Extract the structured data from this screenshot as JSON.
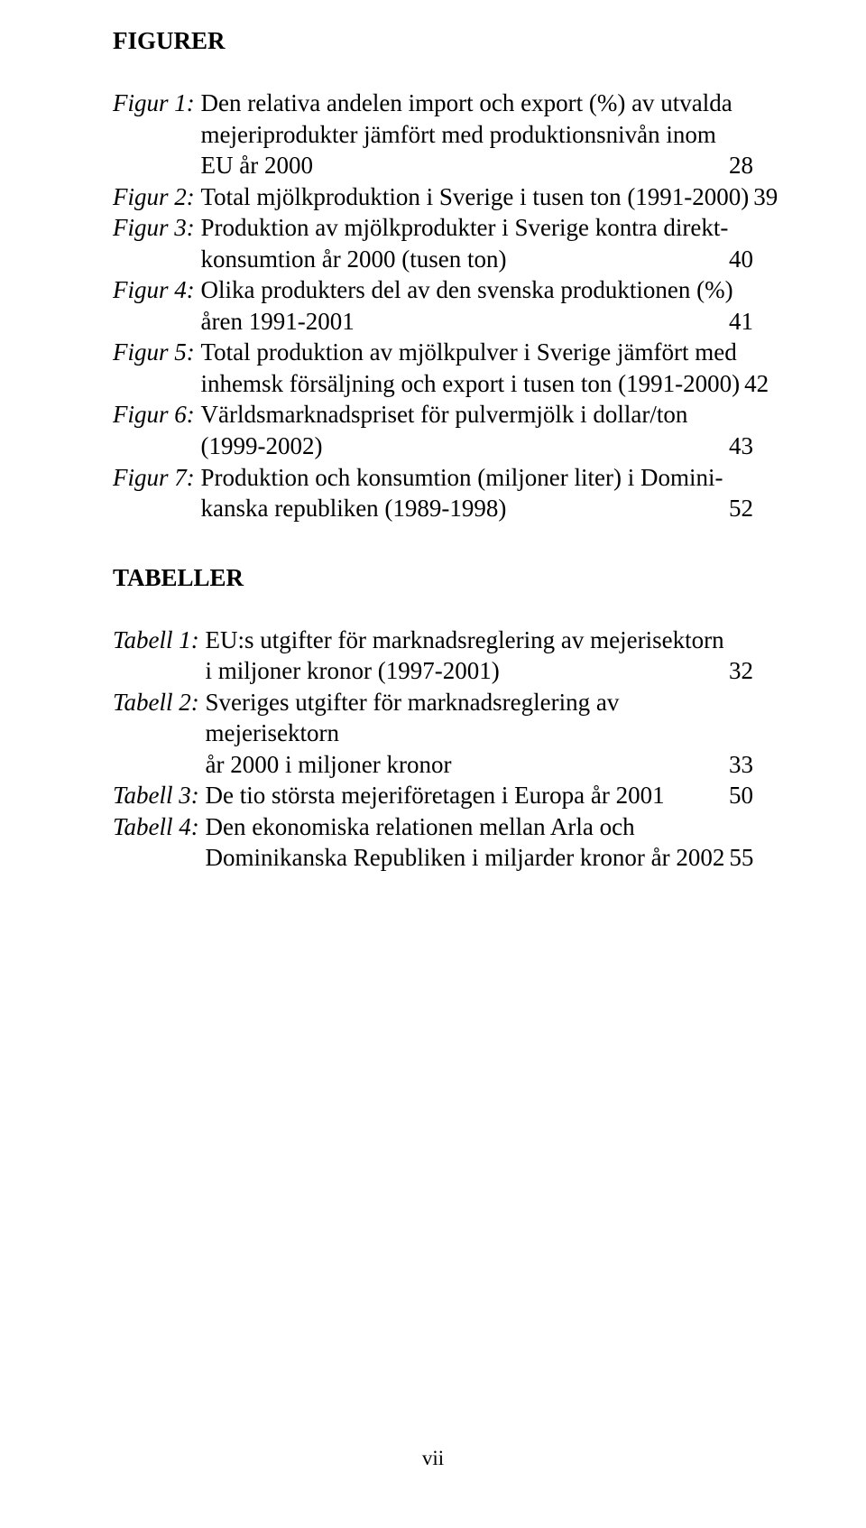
{
  "headings": {
    "figurer": "FIGURER",
    "tabeller": "TABELLER"
  },
  "figures": [
    {
      "label": "Figur 1:",
      "lines": [
        "Den relativa andelen import och export (%) av utvalda",
        "mejeriprodukter jämfört med produktionsnivån inom"
      ],
      "last": "EU år 2000",
      "page": "28"
    },
    {
      "label": "Figur 2:",
      "lines": [],
      "last": "Total mjölkproduktion i Sverige i tusen ton (1991-2000)",
      "page": "39"
    },
    {
      "label": "Figur 3:",
      "lines": [
        "Produktion av mjölkprodukter i Sverige kontra direkt-"
      ],
      "last": "konsumtion år 2000 (tusen ton)",
      "page": "40"
    },
    {
      "label": "Figur 4:",
      "lines": [
        "Olika produkters del av den svenska produktionen (%)"
      ],
      "last": "åren 1991-2001",
      "page": "41"
    },
    {
      "label": "Figur 5:",
      "lines": [
        "Total produktion av mjölkpulver i Sverige jämfört med"
      ],
      "last": "inhemsk försäljning och export i tusen ton (1991-2000)",
      "page": "42"
    },
    {
      "label": "Figur 6:",
      "lines": [
        "Världsmarknadspriset för pulvermjölk i dollar/ton"
      ],
      "last": "(1999-2002)",
      "page": "43"
    },
    {
      "label": "Figur 7:",
      "lines": [
        "Produktion och konsumtion (miljoner liter) i Domini-"
      ],
      "last": "kanska republiken (1989-1998)",
      "page": "52"
    }
  ],
  "tables": [
    {
      "label": "Tabell 1:",
      "lines": [
        "EU:s utgifter för marknadsreglering av mejerisektorn"
      ],
      "last": "i miljoner kronor (1997-2001)",
      "page": "32"
    },
    {
      "label": "Tabell 2:",
      "lines": [
        "Sveriges utgifter för marknadsreglering av mejerisektorn"
      ],
      "last": "år 2000 i miljoner kronor",
      "page": "33"
    },
    {
      "label": "Tabell 3:",
      "lines": [],
      "last": "De tio största mejeriföretagen i Europa år 2001",
      "page": "50"
    },
    {
      "label": "Tabell 4:",
      "lines": [
        "Den ekonomiska relationen mellan Arla och"
      ],
      "last": "Dominikanska Republiken i miljarder kronor år 2002",
      "page": "55"
    }
  ],
  "footer_page": "vii"
}
